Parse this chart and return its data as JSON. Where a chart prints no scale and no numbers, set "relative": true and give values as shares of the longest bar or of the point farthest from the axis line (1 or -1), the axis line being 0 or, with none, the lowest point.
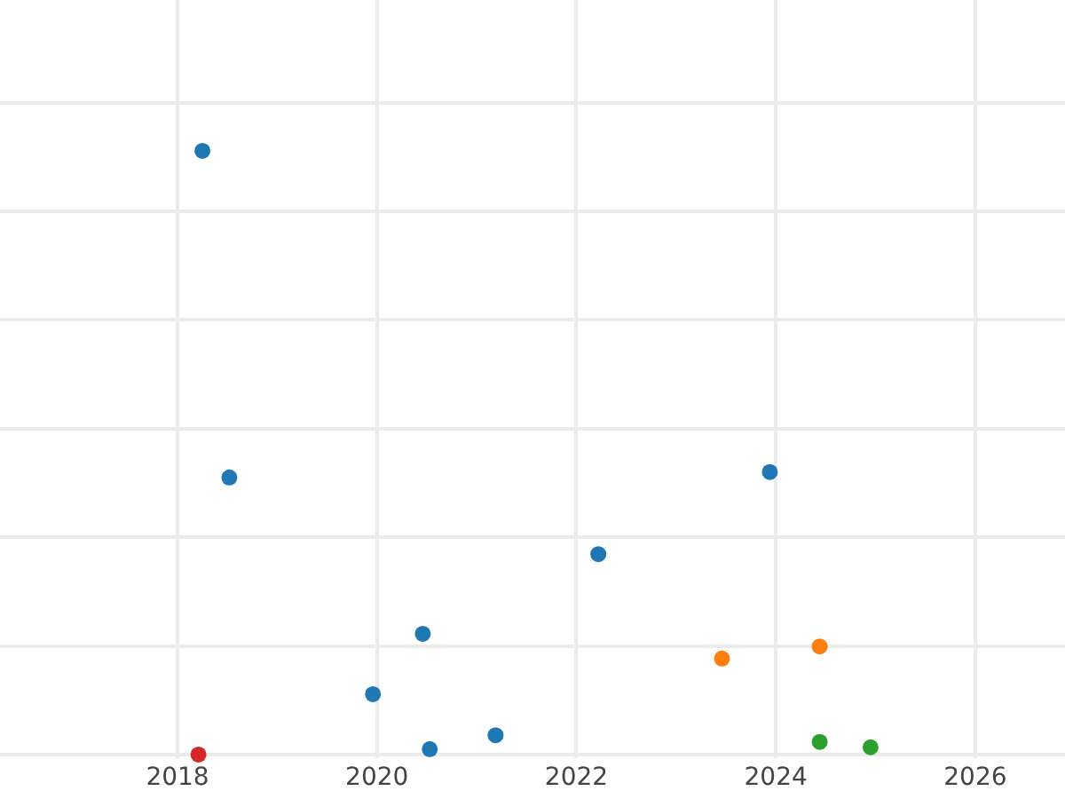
{
  "chart_data": {
    "type": "scatter",
    "relative": true,
    "xlim": [
      2016.22,
      2026.9
    ],
    "xticks": [
      2018,
      2020,
      2022,
      2024,
      2026
    ],
    "grid": true,
    "legend": false,
    "marker": "circle",
    "tick_labels": "x",
    "series": [
      {
        "color": "#1f77b4",
        "x": [
          2018.25,
          2018.52,
          2023.94,
          2022.22,
          2020.46,
          2019.96,
          2020.53,
          2021.19
        ],
        "values": [
          1,
          0.459,
          0.468,
          0.332,
          0.2,
          0.1,
          0.009,
          0.032
        ]
      },
      {
        "color": "#ff7f0e",
        "x": [
          2023.46,
          2024.44
        ],
        "values": [
          0.159,
          0.179
        ]
      },
      {
        "color": "#2ca02c",
        "x": [
          2024.44,
          2024.95
        ],
        "values": [
          0.021,
          0.012
        ]
      },
      {
        "color": "#d62728",
        "x": [
          2018.21
        ],
        "values": [
          0
        ]
      }
    ]
  }
}
